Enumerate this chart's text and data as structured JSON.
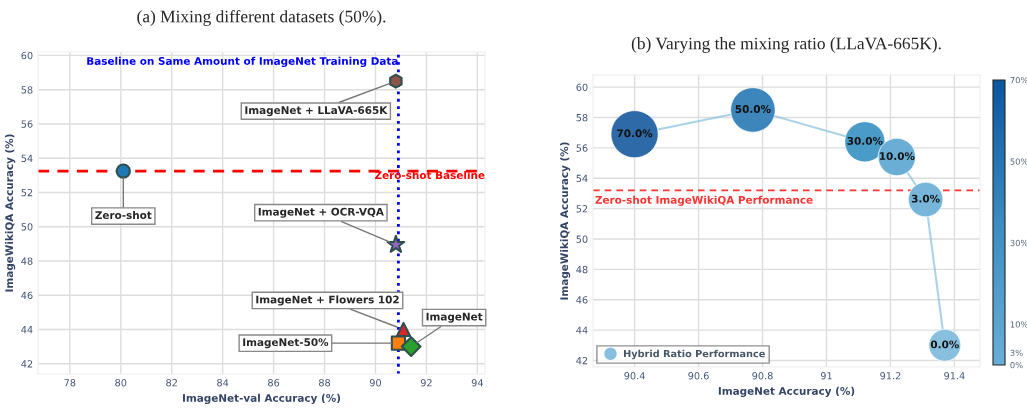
{
  "chart_data": [
    {
      "type": "scatter",
      "title": "(a) Mixing different datasets (50%).",
      "xlabel": "ImageNet-val Accuracy (%)",
      "ylabel": "ImageWikiQA Accuracy (%)",
      "xlim": [
        76.75,
        94.3
      ],
      "ylim": [
        41.4,
        60.2
      ],
      "xticks": [
        78,
        80,
        82,
        84,
        86,
        88,
        90,
        92,
        94
      ],
      "yticks": [
        42,
        44,
        46,
        48,
        50,
        52,
        54,
        56,
        58,
        60
      ],
      "grid": true,
      "series": [
        {
          "x": [
            80.1
          ],
          "values": [
            53.25
          ],
          "color": "#1f77b4",
          "marker": "circle"
        },
        {
          "x": [
            90.8
          ],
          "values": [
            58.5
          ],
          "color": "#8c564b"
        },
        {
          "x": [
            90.8
          ],
          "values": [
            48.95
          ],
          "color": "#9467bd",
          "marker": "star"
        },
        {
          "x": [
            91.1
          ],
          "values": [
            44.0
          ],
          "color": "#d62728",
          "marker": "triangle"
        },
        {
          "x": [
            90.9
          ],
          "values": [
            43.2
          ],
          "color": "#ff7f0e",
          "marker": "square"
        },
        {
          "x": [
            91.4
          ],
          "values": [
            43.0
          ],
          "color": "#2ca02c",
          "marker": "diamond"
        }
      ],
      "ref_lines": [
        {
          "axis": "y",
          "value": 53.25,
          "label": "Zero-shot Baseline",
          "color": "#ff0000",
          "line_style": "dashed"
        },
        {
          "axis": "x",
          "value": 90.9,
          "label": "Baseline on Same Amount of ImageNet Training Data",
          "color": "#0000ff",
          "line_style": "dotted"
        }
      ],
      "annotations": [
        {
          "text": "Zero-shot",
          "x": 80.1,
          "y": 53.25
        },
        {
          "text": "ImageNet + LLaVA-665K",
          "x": 90.8,
          "y": 58.5
        },
        {
          "text": "ImageNet + OCR-VQA",
          "x": 90.8,
          "y": 48.95
        },
        {
          "text": "ImageNet + Flowers 102",
          "x": 91.1,
          "y": 44.0
        },
        {
          "text": "ImageNet-50%",
          "x": 90.9,
          "y": 43.2
        },
        {
          "text": "ImageNet",
          "x": 91.4,
          "y": 43.0
        }
      ]
    },
    {
      "type": "bubble",
      "title": "(b) Varying the mixing ratio (LLaVA-665K).",
      "xlabel": "ImageNet Accuracy (%)",
      "ylabel": "ImageWikiQA Accuracy (%)",
      "xlim": [
        90.27,
        91.48
      ],
      "ylim": [
        41.57,
        60.8
      ],
      "xticks": [
        90.4,
        90.6,
        90.8,
        91,
        91.2,
        91.4
      ],
      "yticks": [
        42,
        44,
        46,
        48,
        50,
        52,
        54,
        56,
        58,
        60
      ],
      "grid": true,
      "legend": "bottom left",
      "clim": [
        0,
        70
      ],
      "cticks": [
        {
          "value": 0,
          "label": "0%"
        },
        {
          "value": 3,
          "label": "3%"
        },
        {
          "value": 10,
          "label": "10%"
        },
        {
          "value": 30,
          "label": "30%"
        },
        {
          "value": 50,
          "label": "50%"
        },
        {
          "value": 70,
          "label": "70%"
        }
      ],
      "series": [
        {
          "name": "Hybrid Ratio Performance",
          "type": "bubble",
          "line_style": "solid",
          "colors": [
            "#2f6aa8",
            "#3c86bb",
            "#4b9bc8",
            "#6aaed6",
            "#77b5da",
            "#88bfde"
          ],
          "x": [
            90.4,
            90.77,
            91.12,
            91.22,
            91.31,
            91.37
          ],
          "values": [
            56.9,
            58.5,
            56.4,
            55.4,
            52.6,
            43.0
          ],
          "sizes": [
            1,
            0.89,
            0.73,
            0.63,
            0.54,
            0.46
          ]
        }
      ],
      "annotations": [
        {
          "text": "70.0%",
          "x": 90.4,
          "y": 56.9
        },
        {
          "text": "50.0%",
          "x": 90.77,
          "y": 58.5
        },
        {
          "text": "30.0%",
          "x": 91.12,
          "y": 56.4
        },
        {
          "text": "10.0%",
          "x": 91.22,
          "y": 55.4
        },
        {
          "text": "3.0%",
          "x": 91.31,
          "y": 52.6
        },
        {
          "text": "0.0%",
          "x": 91.37,
          "y": 43.0
        }
      ],
      "ref_lines": [
        {
          "axis": "y",
          "value": 53.2,
          "label": "Zero-shot ImageWikiQA Performance",
          "color": "#ff3333",
          "line_style": "dashed"
        }
      ]
    }
  ]
}
